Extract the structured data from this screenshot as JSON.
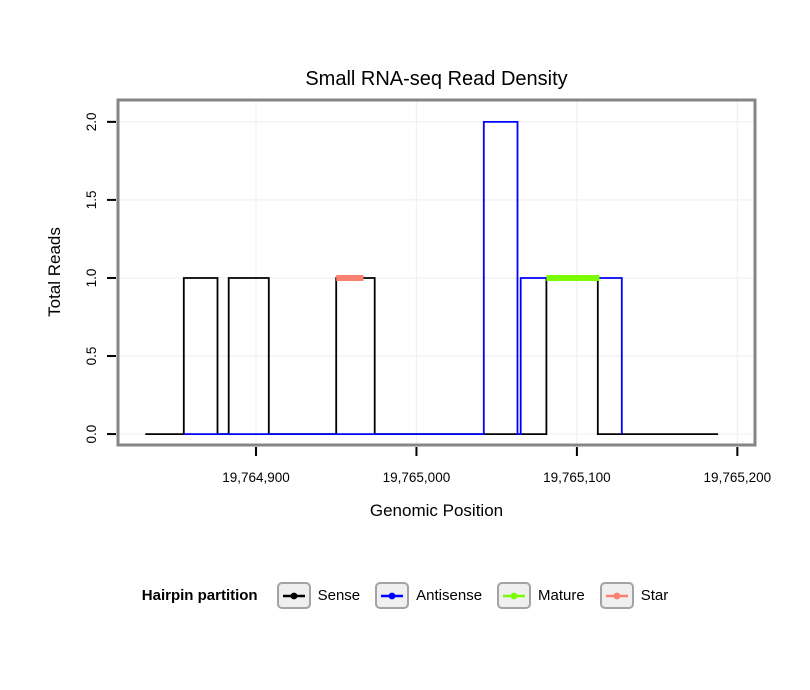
{
  "chart_data": {
    "type": "line",
    "title": "Small RNA-seq Read Density",
    "xlabel": "Genomic Position",
    "ylabel": "Total Reads",
    "legend_title": "Hairpin partition",
    "xlim": [
      19764814,
      19765211
    ],
    "ylim": [
      -0.07,
      2.14
    ],
    "grid": true,
    "legend_position": "bottom",
    "xticks": [
      {
        "value": 19764900,
        "label": "19,764,900"
      },
      {
        "value": 19765000,
        "label": "19,765,000"
      },
      {
        "value": 19765100,
        "label": "19,765,100"
      },
      {
        "value": 19765200,
        "label": "19,765,200"
      }
    ],
    "yticks": [
      {
        "value": 0.0,
        "label": "0.0"
      },
      {
        "value": 0.5,
        "label": "0.5"
      },
      {
        "value": 1.0,
        "label": "1.0"
      },
      {
        "value": 1.5,
        "label": "1.5"
      },
      {
        "value": 2.0,
        "label": "2.0"
      }
    ],
    "series": [
      {
        "name": "Sense",
        "color": "#000000",
        "width": 1.8,
        "points": [
          [
            19764831,
            0
          ],
          [
            19764855,
            0
          ],
          [
            19764855,
            1
          ],
          [
            19764876,
            1
          ],
          [
            19764876,
            0
          ],
          [
            19764883,
            0
          ],
          [
            19764883,
            1
          ],
          [
            19764908,
            1
          ],
          [
            19764908,
            0
          ],
          [
            19764950,
            0
          ],
          [
            19764950,
            1
          ],
          [
            19764974,
            1
          ],
          [
            19764974,
            0
          ],
          [
            19765081,
            0
          ],
          [
            19765081,
            1
          ],
          [
            19765113,
            1
          ],
          [
            19765113,
            0
          ],
          [
            19765188,
            0
          ]
        ]
      },
      {
        "name": "Antisense",
        "color": "#0000ff",
        "width": 1.8,
        "points": [
          [
            19764855,
            0
          ],
          [
            19765042,
            0
          ],
          [
            19765042,
            2
          ],
          [
            19765063,
            2
          ],
          [
            19765063,
            0
          ],
          [
            19765065,
            0
          ],
          [
            19765065,
            1
          ],
          [
            19765128,
            1
          ],
          [
            19765128,
            0
          ]
        ]
      },
      {
        "name": "Mature",
        "color": "#7cfc00",
        "width": 6,
        "points": [
          [
            19765081,
            1
          ],
          [
            19765114,
            1
          ]
        ]
      },
      {
        "name": "Star",
        "color": "#fa8072",
        "width": 6,
        "points": [
          [
            19764950,
            1
          ],
          [
            19764967,
            1
          ]
        ]
      }
    ]
  }
}
